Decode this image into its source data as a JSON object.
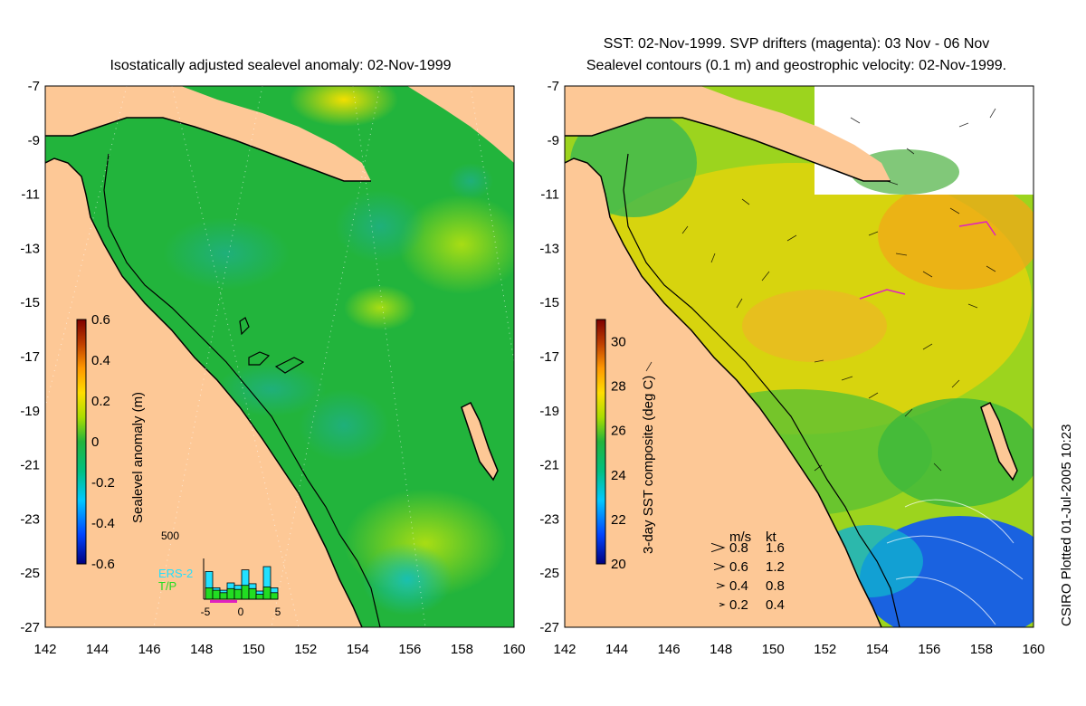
{
  "left_panel": {
    "title": "Isostatically adjusted sealevel anomaly: 02-Nov-1999",
    "lat_ticks": [
      "-7",
      "-9",
      "-11",
      "-13",
      "-15",
      "-17",
      "-19",
      "-21",
      "-23",
      "-25",
      "-27"
    ],
    "lon_ticks": [
      "142",
      "144",
      "146",
      "148",
      "150",
      "152",
      "154",
      "156",
      "158",
      "160"
    ],
    "colorbar": {
      "label": "Sealevel anomaly (m)",
      "ticks": [
        "0.6",
        "0.4",
        "0.2",
        "0",
        "-0.2",
        "-0.4",
        "-0.6"
      ],
      "range": [
        -0.6,
        0.6
      ],
      "colors": [
        "#00007f",
        "#0044ff",
        "#00c8ff",
        "#00c080",
        "#22b43c",
        "#aadd00",
        "#ffdd00",
        "#ff9900",
        "#c04000",
        "#7f0000"
      ]
    },
    "histogram": {
      "ymax_label": "500",
      "x_ticks": [
        "-5",
        "0",
        "5"
      ],
      "legend": [
        "ERS-2",
        "T/P"
      ],
      "ers2_values": [
        340,
        140,
        110,
        200,
        170,
        360,
        190,
        100,
        400,
        140
      ],
      "tp_values": [
        140,
        110,
        80,
        130,
        120,
        170,
        130,
        60,
        150,
        80
      ],
      "ymax": 500
    }
  },
  "right_panel": {
    "title_line1": "SST: 02-Nov-1999. SVP drifters (magenta): 03 Nov - 06 Nov",
    "title_line2": "Sealevel contours (0.1 m) and geostrophic velocity: 02-Nov-1999.",
    "lat_ticks": [
      "-7",
      "-9",
      "-11",
      "-13",
      "-15",
      "-17",
      "-19",
      "-21",
      "-23",
      "-25",
      "-27"
    ],
    "lon_ticks": [
      "142",
      "144",
      "146",
      "148",
      "150",
      "152",
      "154",
      "156",
      "158",
      "160"
    ],
    "colorbar": {
      "label": "3-day SST composite (deg C)",
      "ticks": [
        "30",
        "28",
        "26",
        "24",
        "22",
        "20"
      ],
      "range": [
        20,
        31
      ],
      "colors": [
        "#00007f",
        "#0044ff",
        "#00c8ff",
        "#00c080",
        "#22b43c",
        "#aadd00",
        "#ffdd00",
        "#ff9900",
        "#c04000",
        "#7f0000"
      ]
    },
    "velocity_legend": {
      "header_ms": "m/s",
      "header_kt": "kt",
      "rows": [
        {
          "ms": "0.8",
          "kt": "1.6"
        },
        {
          "ms": "0.6",
          "kt": "1.2"
        },
        {
          "ms": "0.4",
          "kt": "0.8"
        },
        {
          "ms": "0.2",
          "kt": "0.4"
        }
      ]
    }
  },
  "credit": "CSIRO Plotted 01-Jul-2005 10:23",
  "colors": {
    "land": "#fdc896",
    "ocean_base": "#22b43c",
    "coast": "#000000"
  }
}
